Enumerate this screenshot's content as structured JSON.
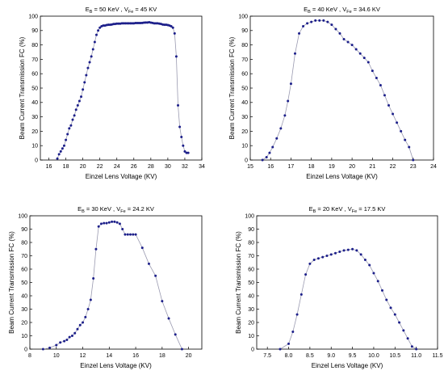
{
  "chart_data": [
    {
      "type": "line",
      "title": {
        "e_main": "E",
        "e_sub": "B",
        "e_rest": " = 50 KeV , V",
        "v_sub": "Fe",
        "v_rest": " = 45 KV"
      },
      "xlabel": "Einzel Lens Voltage (KV)",
      "ylabel": "Beam Current Transmission FC (%)",
      "xlim": [
        15,
        34
      ],
      "ylim": [
        0,
        100
      ],
      "xticks": [
        16,
        18,
        20,
        22,
        24,
        26,
        28,
        30,
        32,
        34
      ],
      "yticks": [
        0,
        10,
        20,
        30,
        40,
        50,
        60,
        70,
        80,
        90,
        100
      ],
      "xticklabels": [
        "16",
        "18",
        "20",
        "22",
        "24",
        "26",
        "28",
        "30",
        "32",
        "34"
      ],
      "yticklabels": [
        "0",
        "10",
        "20",
        "30",
        "40",
        "50",
        "60",
        "70",
        "80",
        "90",
        "100"
      ],
      "x": [
        17.0,
        17.2,
        17.4,
        17.6,
        17.8,
        18.0,
        18.2,
        18.4,
        18.6,
        18.8,
        19.0,
        19.2,
        19.4,
        19.6,
        19.8,
        20.0,
        20.2,
        20.4,
        20.6,
        20.8,
        21.0,
        21.2,
        21.4,
        21.6,
        21.8,
        22.0,
        22.2,
        22.4,
        22.6,
        22.8,
        23.0,
        23.2,
        23.4,
        23.6,
        23.8,
        24.0,
        24.2,
        24.4,
        24.6,
        24.8,
        25.0,
        25.2,
        25.4,
        25.6,
        25.8,
        26.0,
        26.2,
        26.4,
        26.6,
        26.8,
        27.0,
        27.2,
        27.4,
        27.6,
        27.8,
        28.0,
        28.2,
        28.4,
        28.6,
        28.8,
        29.0,
        29.2,
        29.4,
        29.6,
        29.8,
        30.0,
        30.2,
        30.4,
        30.6,
        30.8,
        31.0,
        31.2,
        31.4,
        31.6,
        31.8,
        32.0,
        32.2,
        32.4
      ],
      "y": [
        1,
        4,
        6,
        8,
        10,
        14,
        18,
        22,
        24,
        28,
        31,
        35,
        38,
        41,
        44,
        49,
        54,
        59,
        64,
        68,
        72,
        77,
        82,
        87,
        90,
        92,
        93,
        93.5,
        93.5,
        93.8,
        94,
        94,
        94.2,
        94.5,
        94.6,
        94.8,
        94.8,
        94.8,
        95,
        95,
        95,
        95,
        95,
        95,
        95,
        95,
        95.2,
        95.2,
        95.2,
        95.2,
        95.3,
        95.5,
        95.6,
        95.6,
        95.8,
        95.5,
        95.3,
        95,
        95,
        95,
        94.8,
        94.6,
        94.2,
        94,
        94,
        93.8,
        93.5,
        93,
        92,
        88,
        72,
        38,
        23,
        16,
        10,
        6,
        5,
        5
      ]
    },
    {
      "type": "line",
      "title": {
        "e_main": "E",
        "e_sub": "B",
        "e_rest": " = 40 KeV , V",
        "v_sub": "Fe",
        "v_rest": " = 34.6 KV"
      },
      "xlabel": "Einzel Lens Voltage (KV)",
      "ylabel": "Beam Current Transmission FC (%)",
      "xlim": [
        15,
        24
      ],
      "ylim": [
        0,
        100
      ],
      "xticks": [
        15,
        16,
        17,
        18,
        19,
        20,
        21,
        22,
        23,
        24
      ],
      "yticks": [
        0,
        10,
        20,
        30,
        40,
        50,
        60,
        70,
        80,
        90,
        100
      ],
      "xticklabels": [
        "15",
        "16",
        "17",
        "18",
        "19",
        "20",
        "21",
        "22",
        "23",
        "24"
      ],
      "yticklabels": [
        "0",
        "10",
        "20",
        "30",
        "40",
        "50",
        "60",
        "70",
        "80",
        "90",
        "100"
      ],
      "x": [
        15.6,
        15.8,
        15.95,
        16.1,
        16.3,
        16.5,
        16.7,
        16.85,
        17.0,
        17.2,
        17.4,
        17.6,
        17.8,
        18.0,
        18.2,
        18.4,
        18.6,
        18.8,
        19.0,
        19.2,
        19.4,
        19.6,
        19.8,
        20.0,
        20.2,
        20.4,
        20.6,
        20.8,
        21.0,
        21.2,
        21.4,
        21.6,
        21.8,
        22.0,
        22.2,
        22.4,
        22.6,
        22.8,
        23.0
      ],
      "y": [
        0,
        2,
        5,
        9,
        15,
        22,
        31,
        41,
        53,
        74,
        88,
        93,
        95,
        96,
        97,
        97,
        97,
        96,
        94,
        91,
        88,
        84,
        82,
        80,
        77,
        74,
        71,
        68,
        62,
        57,
        52,
        45,
        38,
        32,
        26,
        20,
        14,
        9,
        0
      ]
    },
    {
      "type": "line",
      "title": {
        "e_main": "E",
        "e_sub": "B",
        "e_rest": " = 30 KeV , V",
        "v_sub": "Fe",
        "v_rest": " = 24.2 KV"
      },
      "xlabel": "Einzel Lens Voltage (KV)",
      "ylabel": "Beam Current Transmission FC (%)",
      "xlim": [
        8,
        21
      ],
      "ylim": [
        0,
        100
      ],
      "xticks": [
        8,
        10,
        12,
        14,
        16,
        18,
        20
      ],
      "yticks": [
        0,
        10,
        20,
        30,
        40,
        50,
        60,
        70,
        80,
        90,
        100
      ],
      "xticklabels": [
        "8",
        "10",
        "12",
        "14",
        "16",
        "18",
        "20"
      ],
      "yticklabels": [
        "0",
        "10",
        "20",
        "30",
        "40",
        "50",
        "60",
        "70",
        "80",
        "90",
        "100"
      ],
      "x": [
        9.0,
        9.5,
        10.0,
        10.3,
        10.6,
        10.8,
        11.0,
        11.2,
        11.4,
        11.6,
        11.8,
        12.0,
        12.2,
        12.4,
        12.6,
        12.8,
        13.0,
        13.2,
        13.4,
        13.6,
        13.8,
        14.0,
        14.2,
        14.4,
        14.6,
        14.8,
        15.0,
        15.2,
        15.4,
        15.6,
        15.8,
        16.0,
        16.5,
        17.0,
        17.5,
        18.0,
        18.5,
        19.0,
        19.5
      ],
      "y": [
        0,
        1,
        3,
        5,
        6,
        7,
        9,
        10,
        12,
        15,
        18,
        20,
        24,
        30,
        37,
        53,
        75,
        92,
        94,
        94.5,
        94.5,
        95,
        95.5,
        95.5,
        95,
        94,
        90,
        86,
        86,
        86,
        86,
        86,
        76,
        64,
        55,
        36,
        23,
        11,
        0
      ]
    },
    {
      "type": "line",
      "title": {
        "e_main": "E",
        "e_sub": "B",
        "e_rest": " = 20 KeV , V",
        "v_sub": "Fe",
        "v_rest": " = 17.5 KV"
      },
      "xlabel": "Einzel Lens Voltage (KV)",
      "ylabel": "Beam Current Transmission FC (%)",
      "xlim": [
        7.25,
        11.5
      ],
      "ylim": [
        0,
        100
      ],
      "xticks": [
        7.5,
        8.0,
        8.5,
        9.0,
        9.5,
        10.0,
        10.5,
        11.0,
        11.5
      ],
      "yticks": [
        0,
        10,
        20,
        30,
        40,
        50,
        60,
        70,
        80,
        90,
        100
      ],
      "xticklabels": [
        "7.5",
        "8.0",
        "8.5",
        "9.0",
        "9.5",
        "10.0",
        "10.5",
        "11.0",
        "11.5"
      ],
      "yticklabels": [
        "0",
        "10",
        "20",
        "30",
        "40",
        "50",
        "60",
        "70",
        "80",
        "90",
        "100"
      ],
      "x": [
        7.8,
        8.0,
        8.1,
        8.2,
        8.3,
        8.4,
        8.5,
        8.6,
        8.7,
        8.8,
        8.9,
        9.0,
        9.1,
        9.2,
        9.3,
        9.4,
        9.5,
        9.6,
        9.7,
        9.8,
        9.9,
        10.0,
        10.1,
        10.2,
        10.3,
        10.4,
        10.5,
        10.6,
        10.7,
        10.8,
        10.9,
        11.0
      ],
      "y": [
        0,
        4,
        13,
        26,
        41,
        56,
        64,
        67,
        68,
        69,
        70,
        71,
        72,
        73,
        74,
        74.5,
        75,
        74,
        71,
        67,
        63,
        57,
        51,
        44,
        37,
        31,
        26,
        20,
        14,
        8,
        2,
        0
      ]
    }
  ]
}
